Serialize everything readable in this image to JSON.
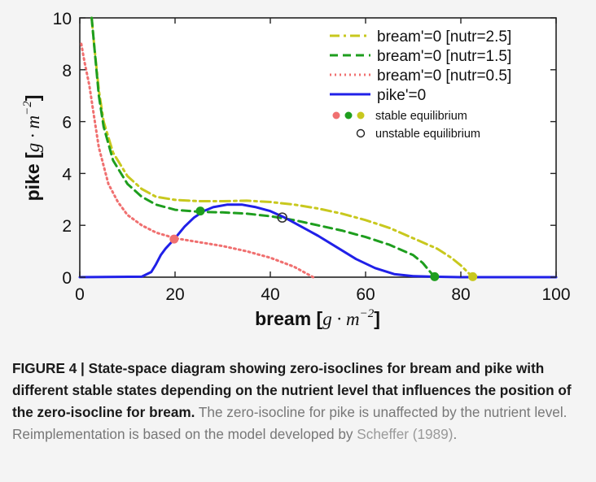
{
  "figure": {
    "caption_bold": "FIGURE 4 | State-space diagram showing zero-isoclines for bream and pike with different stable states depending on the nutrient level that influences the position of the zero-isocline for bream.",
    "caption_text_1": " The zero-isocline for pike is unaffected by the nutrient level. Reimplementation is based on the model developed by ",
    "caption_ref": "Scheffer (1989)",
    "caption_text_2": "."
  },
  "chart_data": {
    "type": "line",
    "xlabel": "bream [g · m⁻²]",
    "ylabel": "pike [g · m⁻²]",
    "xlim": [
      0,
      100
    ],
    "ylim": [
      0,
      10
    ],
    "x_ticks": [
      "0",
      "20",
      "40",
      "60",
      "80",
      "100"
    ],
    "y_ticks": [
      "0",
      "2",
      "4",
      "6",
      "8",
      "10"
    ],
    "grid": false,
    "legend_position": "top-right",
    "series": [
      {
        "name": "bream'=0 [nutr=2.5]",
        "color": "#c8c81e",
        "dash": "dashdot",
        "points": [
          [
            2.5,
            10
          ],
          [
            3,
            9
          ],
          [
            4,
            7.2
          ],
          [
            5,
            6
          ],
          [
            7,
            4.8
          ],
          [
            10,
            3.9
          ],
          [
            13,
            3.4
          ],
          [
            16,
            3.1
          ],
          [
            20,
            2.98
          ],
          [
            25,
            2.93
          ],
          [
            30,
            2.93
          ],
          [
            35,
            2.95
          ],
          [
            40,
            2.9
          ],
          [
            45,
            2.8
          ],
          [
            50,
            2.65
          ],
          [
            55,
            2.45
          ],
          [
            60,
            2.2
          ],
          [
            65,
            1.9
          ],
          [
            70,
            1.5
          ],
          [
            75,
            1.1
          ],
          [
            78,
            0.75
          ],
          [
            80,
            0.45
          ],
          [
            82.5,
            0.0
          ]
        ]
      },
      {
        "name": "bream'=0 [nutr=1.5]",
        "color": "#1e9e1e",
        "dash": "dashed",
        "points": [
          [
            2.5,
            10
          ],
          [
            3,
            9
          ],
          [
            4,
            7
          ],
          [
            5,
            5.8
          ],
          [
            7,
            4.5
          ],
          [
            10,
            3.6
          ],
          [
            13,
            3.1
          ],
          [
            16,
            2.8
          ],
          [
            20,
            2.6
          ],
          [
            25,
            2.52
          ],
          [
            30,
            2.5
          ],
          [
            35,
            2.45
          ],
          [
            40,
            2.35
          ],
          [
            45,
            2.2
          ],
          [
            50,
            2.0
          ],
          [
            55,
            1.8
          ],
          [
            60,
            1.55
          ],
          [
            65,
            1.25
          ],
          [
            70,
            0.85
          ],
          [
            72,
            0.55
          ],
          [
            74.5,
            0.0
          ]
        ]
      },
      {
        "name": "bream'=0 [nutr=0.5]",
        "color": "#f07070",
        "dash": "dotted",
        "points": [
          [
            0.3,
            9
          ],
          [
            1,
            8.3
          ],
          [
            2,
            7.4
          ],
          [
            3,
            6.2
          ],
          [
            4,
            5.0
          ],
          [
            6,
            3.6
          ],
          [
            8,
            2.9
          ],
          [
            10,
            2.4
          ],
          [
            13,
            2.0
          ],
          [
            16,
            1.72
          ],
          [
            20,
            1.5
          ],
          [
            25,
            1.35
          ],
          [
            30,
            1.2
          ],
          [
            35,
            1.0
          ],
          [
            40,
            0.75
          ],
          [
            45,
            0.4
          ],
          [
            49,
            0.0
          ]
        ]
      },
      {
        "name": "pike'=0",
        "color": "#2020e8",
        "dash": "solid",
        "points": [
          [
            0,
            0
          ],
          [
            13,
            0.02
          ],
          [
            15,
            0.2
          ],
          [
            16,
            0.5
          ],
          [
            17,
            0.85
          ],
          [
            18,
            1.1
          ],
          [
            20,
            1.5
          ],
          [
            22,
            1.95
          ],
          [
            24,
            2.3
          ],
          [
            26,
            2.55
          ],
          [
            28,
            2.7
          ],
          [
            31,
            2.8
          ],
          [
            34,
            2.8
          ],
          [
            37,
            2.7
          ],
          [
            40,
            2.55
          ],
          [
            43,
            2.3
          ],
          [
            46,
            2.0
          ],
          [
            50,
            1.6
          ],
          [
            54,
            1.15
          ],
          [
            58,
            0.7
          ],
          [
            62,
            0.35
          ],
          [
            66,
            0.12
          ],
          [
            70,
            0.04
          ],
          [
            74,
            0.02
          ],
          [
            80,
            0.0
          ],
          [
            100,
            0.0
          ]
        ]
      }
    ],
    "markers": [
      {
        "type": "stable equilibrium",
        "color": "#f07070",
        "x": 19.8,
        "y": 1.47
      },
      {
        "type": "stable equilibrium",
        "color": "#1e9e1e",
        "x": 25.3,
        "y": 2.55
      },
      {
        "type": "unstable equilibrium",
        "color": "#333333",
        "x": 42.5,
        "y": 2.3
      },
      {
        "type": "stable equilibrium",
        "color": "#1e9e1e",
        "x": 74.5,
        "y": 0.02
      },
      {
        "type": "stable equilibrium",
        "color": "#c8c81e",
        "x": 82.5,
        "y": 0.02
      }
    ],
    "legend": {
      "entries": [
        "bream'=0 [nutr=2.5]",
        "bream'=0 [nutr=1.5]",
        "bream'=0 [nutr=0.5]",
        "pike'=0"
      ],
      "stable_label": "stable equilibrium",
      "unstable_label": "unstable equilibrium",
      "stable_colors": [
        "#f07070",
        "#1e9e1e",
        "#c8c81e"
      ]
    }
  }
}
